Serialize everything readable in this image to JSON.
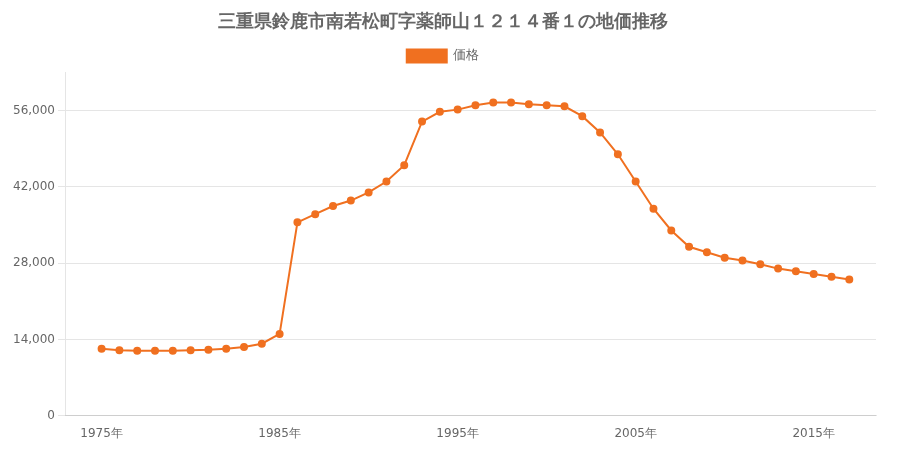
{
  "chart_data": {
    "type": "line",
    "title": "三重県鈴鹿市南若松町字薬師山１２１４番１の地価推移",
    "x": [
      1975,
      1976,
      1977,
      1978,
      1979,
      1980,
      1981,
      1982,
      1983,
      1984,
      1985,
      1986,
      1987,
      1988,
      1989,
      1990,
      1991,
      1992,
      1993,
      1994,
      1995,
      1996,
      1997,
      1998,
      1999,
      2000,
      2001,
      2002,
      2003,
      2004,
      2005,
      2006,
      2007,
      2008,
      2009,
      2010,
      2011,
      2012,
      2013,
      2014,
      2015,
      2016,
      2017
    ],
    "series": [
      {
        "name": "価格",
        "color": "#f07020",
        "marker": "circle",
        "line_style": "solid",
        "values": [
          12300,
          12000,
          11900,
          11900,
          11900,
          12000,
          12100,
          12300,
          12600,
          13200,
          15000,
          35500,
          37000,
          38500,
          39500,
          41000,
          43000,
          46000,
          54000,
          55800,
          56200,
          57000,
          57500,
          57500,
          57200,
          57000,
          56800,
          55000,
          52000,
          48000,
          43000,
          38000,
          34000,
          31000,
          30000,
          29000,
          28500,
          27800,
          27000,
          26500,
          26000,
          25500,
          25000
        ]
      }
    ],
    "xlim": [
      1973,
      2018.5
    ],
    "xticks": [
      {
        "value": 1975,
        "label": "1975年"
      },
      {
        "value": 1985,
        "label": "1985年"
      },
      {
        "value": 1995,
        "label": "1995年"
      },
      {
        "value": 2005,
        "label": "2005年"
      },
      {
        "value": 2015,
        "label": "2015年"
      }
    ],
    "ylim": [
      0,
      63000
    ],
    "yticks": [
      0,
      {
        "value": 14000,
        "label": "14,000"
      },
      {
        "value": 28000,
        "label": "28,000"
      },
      {
        "value": 42000,
        "label": "42,000"
      },
      {
        "value": 56000,
        "label": "56,000"
      }
    ],
    "grid": "y",
    "legend": "top"
  }
}
